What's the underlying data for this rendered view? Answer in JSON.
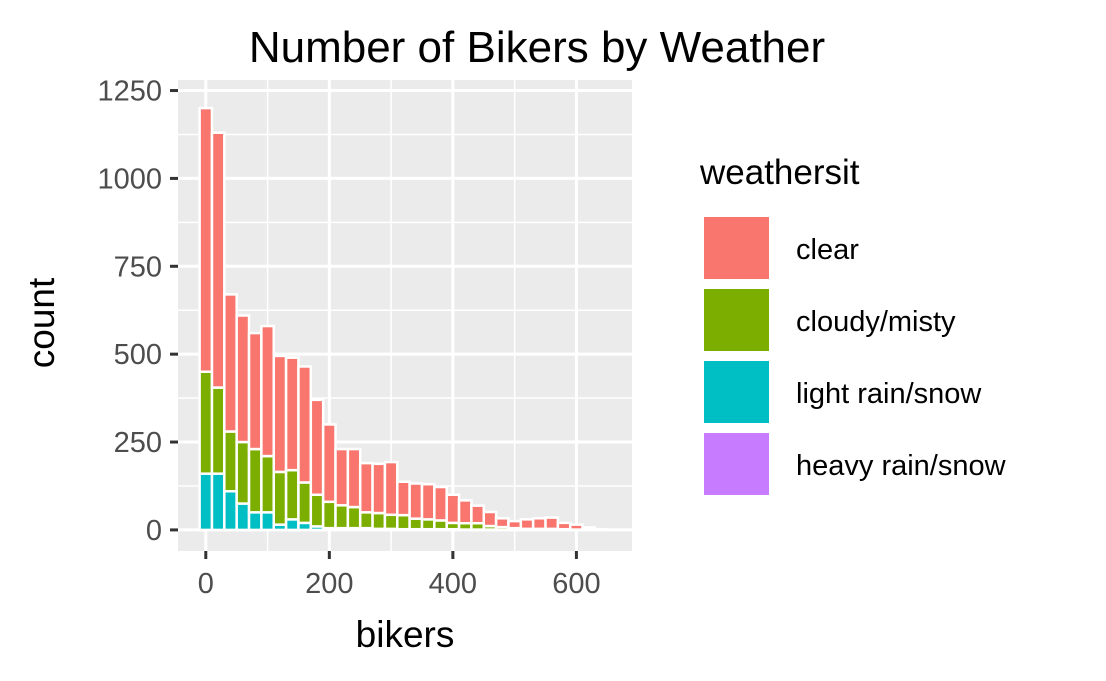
{
  "chart_data": {
    "type": "bar",
    "title": "Number of Bikers by Weather",
    "xlabel": "bikers",
    "ylabel": "count",
    "xlim": [
      -45,
      690
    ],
    "ylim": [
      -60,
      1280
    ],
    "x_ticks": [
      0,
      200,
      400,
      600
    ],
    "x_tick_labels": [
      "0",
      "200",
      "400",
      "600"
    ],
    "y_ticks": [
      0,
      250,
      500,
      750,
      1000,
      1250
    ],
    "y_tick_labels": [
      "0",
      "250",
      "500",
      "750",
      "1000",
      "1250"
    ],
    "x_minor_ticks": [
      100,
      300,
      500
    ],
    "y_minor_ticks": [
      125,
      375,
      625,
      875,
      1125
    ],
    "bin_width": 20,
    "grid": true,
    "legend": {
      "title": "weathersit",
      "position": "right"
    },
    "x": [
      0,
      20,
      40,
      60,
      80,
      100,
      120,
      140,
      160,
      180,
      200,
      220,
      240,
      260,
      280,
      300,
      320,
      340,
      360,
      380,
      400,
      420,
      440,
      460,
      480,
      500,
      520,
      540,
      560,
      580,
      600,
      620,
      640
    ],
    "series": [
      {
        "name": "light rain/snow",
        "color": "#00BFC4",
        "values": [
          160,
          160,
          110,
          75,
          50,
          50,
          15,
          30,
          20,
          10,
          5,
          5,
          5,
          5,
          3,
          3,
          2,
          2,
          2,
          2,
          2,
          1,
          1,
          1,
          0,
          0,
          0,
          0,
          0,
          0,
          0,
          0,
          0
        ]
      },
      {
        "name": "cloudy/misty",
        "color": "#7CAE00",
        "values": [
          290,
          245,
          170,
          175,
          180,
          160,
          150,
          140,
          115,
          90,
          75,
          65,
          60,
          45,
          45,
          40,
          40,
          30,
          28,
          25,
          18,
          18,
          18,
          10,
          8,
          5,
          3,
          3,
          3,
          2,
          1,
          1,
          0
        ]
      },
      {
        "name": "clear",
        "color": "#F8766D",
        "values": [
          750,
          725,
          390,
          360,
          330,
          370,
          330,
          320,
          330,
          270,
          220,
          160,
          165,
          140,
          140,
          150,
          95,
          100,
          100,
          95,
          80,
          65,
          50,
          40,
          25,
          20,
          27,
          30,
          32,
          18,
          14,
          6,
          2
        ]
      },
      {
        "name": "heavy rain/snow",
        "color": "#C77CFF",
        "values": [
          0,
          0,
          0,
          0,
          0,
          0,
          0,
          0,
          0,
          0,
          0,
          0,
          0,
          0,
          0,
          0,
          0,
          0,
          0,
          0,
          0,
          0,
          0,
          0,
          0,
          0,
          0,
          0,
          0,
          0,
          0,
          0,
          0
        ]
      }
    ],
    "legend_order": [
      "clear",
      "cloudy/misty",
      "light rain/snow",
      "heavy rain/snow"
    ]
  },
  "colors": {
    "panel_background": "#EBEBEB",
    "grid_major": "#FFFFFF",
    "bar_outline": "#FFFFFF",
    "tick_text": "#4D4D4D",
    "tick_mark": "#333333"
  }
}
